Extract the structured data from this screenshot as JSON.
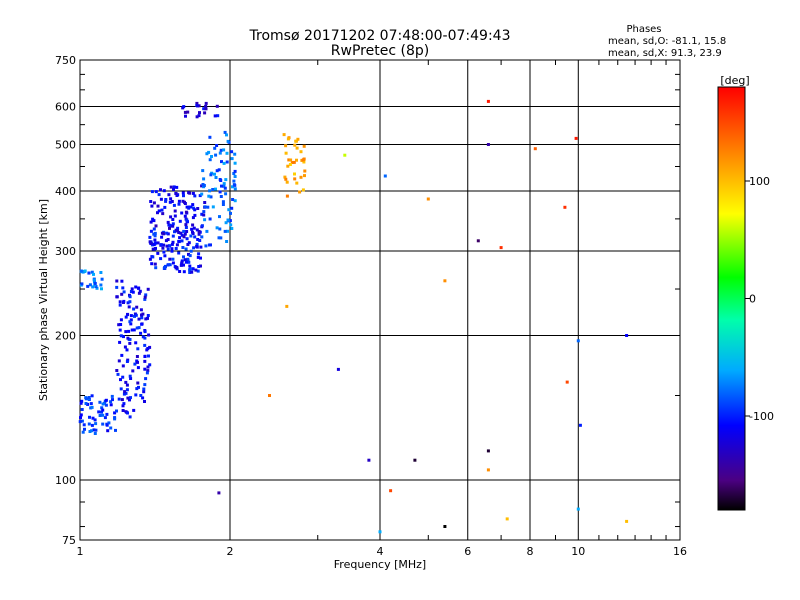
{
  "chart_data": {
    "type": "scatter",
    "title": "Tromsø 20171202 07:48:00-07:49:43",
    "subtitle": "RwPretec (8p)",
    "xlabel": "Frequency [MHz]",
    "ylabel": "Stationary phase Virtual Height [km]",
    "x_scale": "log",
    "y_scale": "log",
    "xlim": [
      1,
      16
    ],
    "ylim": [
      75,
      750
    ],
    "x_ticks": [
      1,
      2,
      4,
      6,
      8,
      10,
      16
    ],
    "x_tick_labels": [
      "1",
      "2",
      "4",
      "6",
      "8",
      "10",
      "16"
    ],
    "y_ticks": [
      75,
      100,
      200,
      300,
      400,
      500,
      600,
      750
    ],
    "y_tick_labels": [
      "75",
      "100",
      "200",
      "300",
      "400",
      "500",
      "600",
      "750"
    ],
    "grid": true,
    "phase_box": {
      "title": "Phases",
      "line1": "mean, sd,O: -81.1, 15.8",
      "line2": "mean, sd,X:  91.3, 23.9"
    },
    "colorbar": {
      "label": "[deg]",
      "min": -180,
      "max": 180,
      "ticks": [
        100,
        0,
        -100
      ],
      "tick_labels": [
        "100",
        "0",
        "-100"
      ]
    },
    "traces": [
      {
        "x_range": [
          1.0,
          1.18
        ],
        "y_range": [
          125,
          150
        ],
        "phase": -95,
        "n": 60
      },
      {
        "x_range": [
          1.18,
          1.38
        ],
        "y_range": [
          135,
          260
        ],
        "phase": -110,
        "n": 140
      },
      {
        "x_range": [
          1.38,
          1.75
        ],
        "y_range": [
          270,
          330
        ],
        "phase": -105,
        "n": 120
      },
      {
        "x_range": [
          1.38,
          1.78
        ],
        "y_range": [
          320,
          410
        ],
        "phase": -115,
        "n": 100
      },
      {
        "x_range": [
          1.75,
          2.05
        ],
        "y_range": [
          300,
          530
        ],
        "phase": -80,
        "n": 90
      },
      {
        "x_range": [
          1.6,
          1.9
        ],
        "y_range": [
          570,
          610
        ],
        "phase": -120,
        "n": 20
      },
      {
        "x_range": [
          2.55,
          2.85
        ],
        "y_range": [
          390,
          530
        ],
        "phase": 110,
        "n": 35
      },
      {
        "x_range": [
          1.0,
          1.12
        ],
        "y_range": [
          250,
          275
        ],
        "phase": -75,
        "n": 25
      }
    ],
    "points": [
      {
        "x": 6.6,
        "y": 615,
        "phase": 170
      },
      {
        "x": 6.6,
        "y": 500,
        "phase": -140
      },
      {
        "x": 9.9,
        "y": 515,
        "phase": 170
      },
      {
        "x": 8.2,
        "y": 490,
        "phase": 140
      },
      {
        "x": 9.4,
        "y": 370,
        "phase": 160
      },
      {
        "x": 7.0,
        "y": 305,
        "phase": 160
      },
      {
        "x": 3.4,
        "y": 475,
        "phase": 60
      },
      {
        "x": 4.1,
        "y": 430,
        "phase": -80
      },
      {
        "x": 5.0,
        "y": 385,
        "phase": 120
      },
      {
        "x": 6.3,
        "y": 315,
        "phase": -160
      },
      {
        "x": 5.4,
        "y": 260,
        "phase": 120
      },
      {
        "x": 2.6,
        "y": 230,
        "phase": 110
      },
      {
        "x": 2.4,
        "y": 150,
        "phase": 130
      },
      {
        "x": 3.3,
        "y": 170,
        "phase": -120
      },
      {
        "x": 3.8,
        "y": 110,
        "phase": -130
      },
      {
        "x": 4.7,
        "y": 110,
        "phase": -170
      },
      {
        "x": 6.6,
        "y": 115,
        "phase": -170
      },
      {
        "x": 6.6,
        "y": 105,
        "phase": 120
      },
      {
        "x": 10.0,
        "y": 195,
        "phase": -80
      },
      {
        "x": 12.5,
        "y": 200,
        "phase": -110
      },
      {
        "x": 9.5,
        "y": 160,
        "phase": 150
      },
      {
        "x": 10.1,
        "y": 130,
        "phase": -100
      },
      {
        "x": 10.0,
        "y": 87,
        "phase": -60
      },
      {
        "x": 12.5,
        "y": 82,
        "phase": 100
      },
      {
        "x": 7.2,
        "y": 83,
        "phase": 100
      },
      {
        "x": 4.2,
        "y": 95,
        "phase": 150
      },
      {
        "x": 5.4,
        "y": 80,
        "phase": -180
      },
      {
        "x": 4.0,
        "y": 78,
        "phase": -60
      },
      {
        "x": 1.9,
        "y": 94,
        "phase": -140
      }
    ]
  }
}
